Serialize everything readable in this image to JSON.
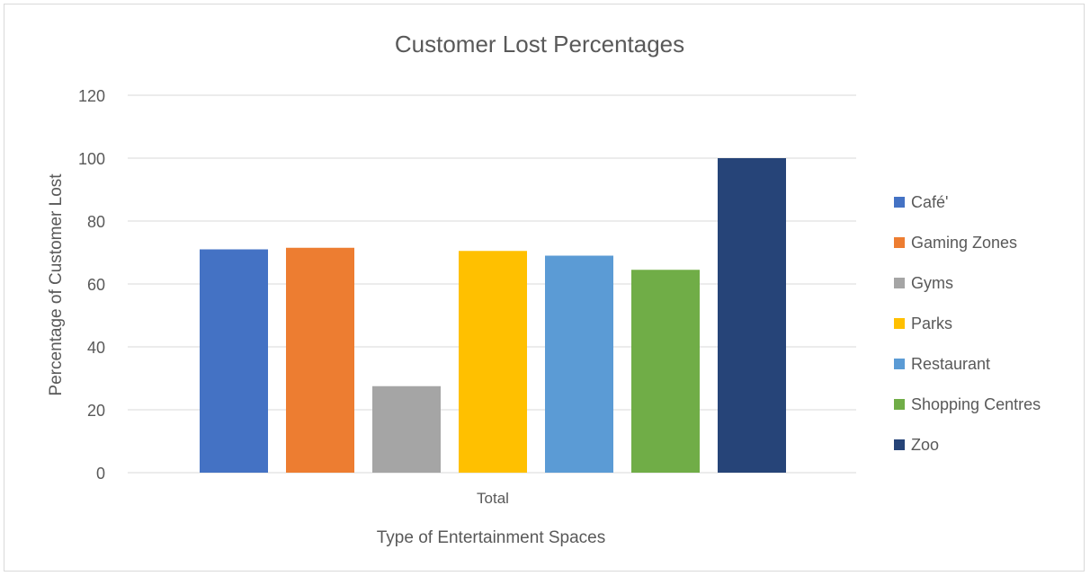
{
  "chart_data": {
    "type": "bar",
    "title": "Customer Lost Percentages",
    "xlabel": "Type of Entertainment Spaces",
    "ylabel": "Percentage of Customer Lost",
    "categories": [
      "Total"
    ],
    "ylim": [
      0,
      120
    ],
    "yticks": [
      0,
      20,
      40,
      60,
      80,
      100,
      120
    ],
    "grid": true,
    "legend_position": "right",
    "series": [
      {
        "name": "Café'",
        "values": [
          71
        ],
        "color": "#4472C4"
      },
      {
        "name": "Gaming Zones",
        "values": [
          71.5
        ],
        "color": "#ED7D31"
      },
      {
        "name": "Gyms",
        "values": [
          27.5
        ],
        "color": "#A5A5A5"
      },
      {
        "name": "Parks",
        "values": [
          70.5
        ],
        "color": "#FFC000"
      },
      {
        "name": "Restaurant",
        "values": [
          69
        ],
        "color": "#5B9BD5"
      },
      {
        "name": "Shopping Centres",
        "values": [
          64.5
        ],
        "color": "#70AD47"
      },
      {
        "name": "Zoo",
        "values": [
          100
        ],
        "color": "#264478"
      }
    ]
  }
}
